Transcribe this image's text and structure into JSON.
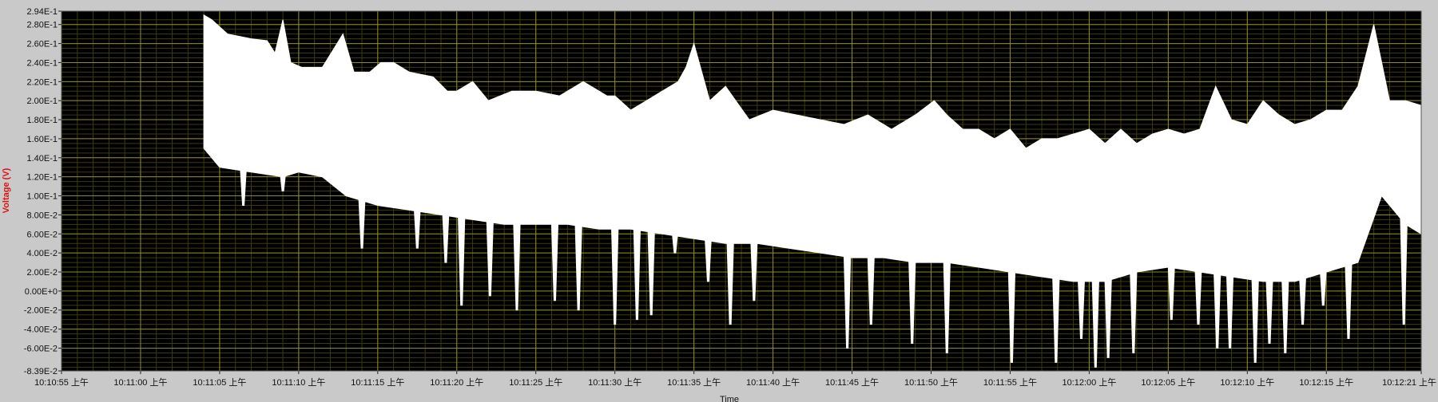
{
  "chart_data": {
    "type": "line",
    "title": "",
    "xlabel": "Time",
    "ylabel": "Voltage (V)",
    "x_start_label": "10:10:55 上午",
    "x_end_label": "10:12:21 上午",
    "xlim": [
      "10:10:55",
      "10:12:21"
    ],
    "ylim": [
      -0.0839,
      0.294
    ],
    "y_tick_labels": [
      "2.94E-1",
      "2.80E-1",
      "2.60E-1",
      "2.40E-1",
      "2.20E-1",
      "2.00E-1",
      "1.80E-1",
      "1.60E-1",
      "1.40E-1",
      "1.20E-1",
      "1.00E-1",
      "8.00E-2",
      "6.00E-2",
      "4.00E-2",
      "2.00E-2",
      "0.00E+0",
      "-2.00E-2",
      "-4.00E-2",
      "-6.00E-2",
      "-8.39E-2"
    ],
    "x_tick_labels": [
      "10:10:55 上午",
      "10:11:00 上午",
      "10:11:05 上午",
      "10:11:10 上午",
      "10:11:15 上午",
      "10:11:20 上午",
      "10:11:25 上午",
      "10:11:30 上午",
      "10:11:35 上午",
      "10:11:40 上午",
      "10:11:45 上午",
      "10:11:50 上午",
      "10:11:55 上午",
      "10:12:00 上午",
      "10:12:05 上午",
      "10:12:10 上午",
      "10:12:15 上午",
      "10:12:21 上午"
    ],
    "grid": true,
    "series": [
      {
        "upper_envelope": {
          "x": [
            "10:11:04.0",
            "10:11:04.5",
            "10:11:05.5",
            "10:11:07.0",
            "10:11:08.0",
            "10:11:08.5",
            "10:11:09.0",
            "10:11:09.5",
            "10:11:10.2",
            "10:11:11.5",
            "10:11:12.8",
            "10:11:13.5",
            "10:11:14.5",
            "10:11:15.2",
            "10:11:16.0",
            "10:11:17.0",
            "10:11:18.5",
            "10:11:19.4",
            "10:11:20.0",
            "10:11:21.0",
            "10:11:22.0",
            "10:11:23.5",
            "10:11:25.0",
            "10:11:26.5",
            "10:11:28.0",
            "10:11:29.5",
            "10:11:30.0",
            "10:11:31.0",
            "10:11:32.0",
            "10:11:33.0",
            "10:11:34.0",
            "10:11:34.5",
            "10:11:35.0",
            "10:11:36.0",
            "10:11:37.0",
            "10:11:38.5",
            "10:11:40.0",
            "10:11:41.5",
            "10:11:43.0",
            "10:11:44.5",
            "10:11:46.0",
            "10:11:47.5",
            "10:11:49.0",
            "10:11:50.2",
            "10:11:51.0",
            "10:11:52.0",
            "10:11:53.0",
            "10:11:54.0",
            "10:11:55.0",
            "10:11:56.0",
            "10:11:57.0",
            "10:11:58.0",
            "10:11:59.0",
            "10:12:00.0",
            "10:12:01.0",
            "10:12:02.0",
            "10:12:03.0",
            "10:12:04.0",
            "10:12:05.0",
            "10:12:06.0",
            "10:12:07.0",
            "10:12:08.0",
            "10:12:09.0",
            "10:12:10.0",
            "10:12:11.0",
            "10:12:12.0",
            "10:12:13.0",
            "10:12:14.0",
            "10:12:15.0",
            "10:12:16.0",
            "10:12:17.0",
            "10:12:18.0",
            "10:12:18.5",
            "10:12:19.0",
            "10:12:20.0",
            "10:12:21.0"
          ],
          "y": [
            0.29,
            0.285,
            0.27,
            0.265,
            0.263,
            0.25,
            0.285,
            0.24,
            0.235,
            0.235,
            0.27,
            0.23,
            0.23,
            0.24,
            0.24,
            0.23,
            0.225,
            0.21,
            0.21,
            0.22,
            0.2,
            0.21,
            0.21,
            0.205,
            0.22,
            0.205,
            0.205,
            0.19,
            0.2,
            0.21,
            0.22,
            0.235,
            0.26,
            0.2,
            0.215,
            0.18,
            0.19,
            0.185,
            0.18,
            0.175,
            0.185,
            0.17,
            0.185,
            0.2,
            0.185,
            0.17,
            0.17,
            0.16,
            0.17,
            0.15,
            0.16,
            0.16,
            0.165,
            0.17,
            0.155,
            0.17,
            0.155,
            0.165,
            0.17,
            0.165,
            0.17,
            0.215,
            0.18,
            0.175,
            0.2,
            0.185,
            0.175,
            0.18,
            0.19,
            0.19,
            0.215,
            0.28,
            0.24,
            0.2,
            0.2,
            0.195
          ]
        },
        "lower_envelope": {
          "x": [
            "10:11:04.0",
            "10:11:05.0",
            "10:11:07.0",
            "10:11:09.0",
            "10:11:10.0",
            "10:11:11.5",
            "10:11:13.0",
            "10:11:15.0",
            "10:11:17.0",
            "10:11:19.0",
            "10:11:21.0",
            "10:11:23.0",
            "10:11:25.0",
            "10:11:27.0",
            "10:11:29.0",
            "10:11:31.0",
            "10:11:33.0",
            "10:11:35.0",
            "10:11:37.0",
            "10:11:39.0",
            "10:11:41.0",
            "10:11:43.0",
            "10:11:45.0",
            "10:11:47.0",
            "10:11:49.0",
            "10:11:51.0",
            "10:11:53.0",
            "10:11:55.0",
            "10:11:57.0",
            "10:11:59.0",
            "10:12:01.0",
            "10:12:03.0",
            "10:12:05.0",
            "10:12:07.0",
            "10:12:09.0",
            "10:12:11.0",
            "10:12:13.0",
            "10:12:15.0",
            "10:12:17.0",
            "10:12:18.5",
            "10:12:20.0",
            "10:12:21.0"
          ],
          "y": [
            0.15,
            0.13,
            0.125,
            0.12,
            0.125,
            0.12,
            0.1,
            0.09,
            0.085,
            0.08,
            0.075,
            0.07,
            0.07,
            0.07,
            0.065,
            0.065,
            0.06,
            0.055,
            0.05,
            0.05,
            0.045,
            0.04,
            0.035,
            0.035,
            0.03,
            0.03,
            0.025,
            0.02,
            0.015,
            0.01,
            0.01,
            0.02,
            0.025,
            0.02,
            0.015,
            0.01,
            0.01,
            0.02,
            0.03,
            0.1,
            0.07,
            0.06
          ]
        },
        "dips": [
          {
            "x": "10:11:06.5",
            "y": 0.09
          },
          {
            "x": "10:11:09.0",
            "y": 0.105
          },
          {
            "x": "10:11:14.0",
            "y": 0.045
          },
          {
            "x": "10:11:17.5",
            "y": 0.045
          },
          {
            "x": "10:11:19.3",
            "y": 0.03
          },
          {
            "x": "10:11:20.3",
            "y": -0.015
          },
          {
            "x": "10:11:22.1",
            "y": -0.005
          },
          {
            "x": "10:11:23.8",
            "y": -0.02
          },
          {
            "x": "10:11:26.2",
            "y": -0.01
          },
          {
            "x": "10:11:27.7",
            "y": -0.02
          },
          {
            "x": "10:11:30.0",
            "y": -0.035
          },
          {
            "x": "10:11:31.4",
            "y": -0.03
          },
          {
            "x": "10:11:32.3",
            "y": -0.025
          },
          {
            "x": "10:11:33.8",
            "y": 0.04
          },
          {
            "x": "10:11:35.9",
            "y": 0.01
          },
          {
            "x": "10:11:37.3",
            "y": -0.035
          },
          {
            "x": "10:11:38.8",
            "y": -0.01
          },
          {
            "x": "10:11:44.7",
            "y": -0.06
          },
          {
            "x": "10:11:46.2",
            "y": -0.035
          },
          {
            "x": "10:11:48.8",
            "y": -0.055
          },
          {
            "x": "10:11:51.0",
            "y": -0.065
          },
          {
            "x": "10:11:55.1",
            "y": -0.075
          },
          {
            "x": "10:11:57.9",
            "y": -0.075
          },
          {
            "x": "10:11:59.5",
            "y": -0.05
          },
          {
            "x": "10:12:00.4",
            "y": -0.08
          },
          {
            "x": "10:12:01.2",
            "y": -0.07
          },
          {
            "x": "10:12:02.8",
            "y": -0.065
          },
          {
            "x": "10:12:05.2",
            "y": -0.03
          },
          {
            "x": "10:12:06.9",
            "y": -0.035
          },
          {
            "x": "10:12:08.1",
            "y": -0.06
          },
          {
            "x": "10:12:08.9",
            "y": -0.06
          },
          {
            "x": "10:12:10.5",
            "y": -0.075
          },
          {
            "x": "10:12:11.4",
            "y": -0.055
          },
          {
            "x": "10:12:12.4",
            "y": -0.065
          },
          {
            "x": "10:12:13.5",
            "y": -0.035
          },
          {
            "x": "10:12:14.8",
            "y": -0.015
          },
          {
            "x": "10:12:16.4",
            "y": -0.05
          },
          {
            "x": "10:12:19.9",
            "y": -0.035
          }
        ]
      }
    ]
  },
  "colors": {
    "frame": "#c9c9c9",
    "plot_bg": "#000000",
    "grid_major": "#8f8c1e",
    "grid_minor": "#3d3b0c",
    "trace": "#ffffff",
    "ylabel": "#e01010",
    "tick_text": "#111111"
  }
}
